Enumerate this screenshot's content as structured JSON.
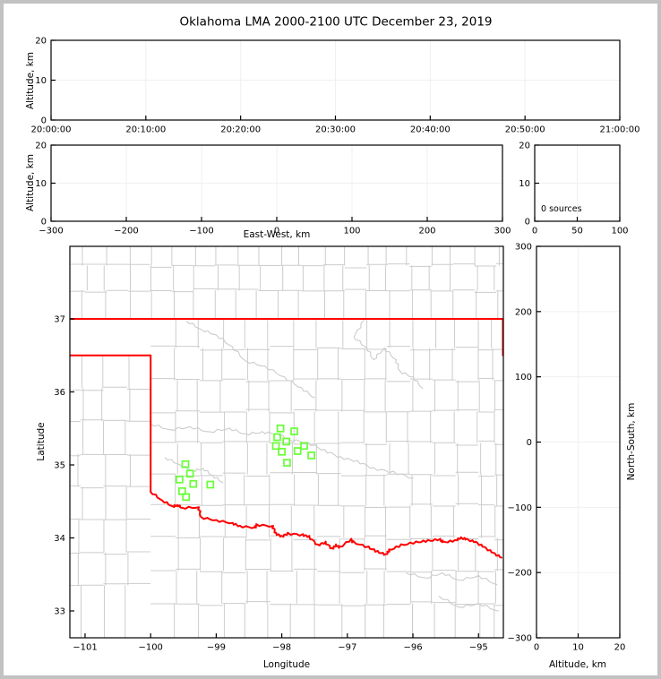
{
  "figure": {
    "title": "Oklahoma LMA 2000-2100 UTC December 23, 2019",
    "background": "#ffffff",
    "border_color": "#c2c2c2"
  },
  "colors": {
    "axis_frame": "#000000",
    "grid": "#f0f0f0",
    "county_line": "#cccccc",
    "gray_river": "#cccccc",
    "state_border_red": "#ff0000",
    "station_green": "#66ff33",
    "tick_text": "#000000"
  },
  "chart_data": [
    {
      "id": "time-height",
      "type": "scatter",
      "ylabel": "Altitude, km",
      "xlabel": "",
      "xlim": [
        0,
        3600
      ],
      "ylim": [
        0,
        20
      ],
      "x_ticks": {
        "values": [
          0,
          600,
          1200,
          1800,
          2400,
          3000,
          3600
        ],
        "labels": [
          "20:00:00",
          "20:10:00",
          "20:20:00",
          "20:30:00",
          "20:40:00",
          "20:50:00",
          "21:00:00"
        ]
      },
      "y_ticks": {
        "values": [
          0,
          10,
          20
        ],
        "labels": [
          "0",
          "10",
          "20"
        ]
      },
      "points": []
    },
    {
      "id": "ew-height",
      "type": "scatter",
      "ylabel": "Altitude, km",
      "xlabel": "East-West, km",
      "xlim": [
        -300,
        300
      ],
      "ylim": [
        0,
        20
      ],
      "x_ticks": {
        "values": [
          -300,
          -200,
          -100,
          0,
          100,
          200,
          300
        ],
        "labels": [
          "−300",
          "−200",
          "−100",
          "0",
          "100",
          "200",
          "300"
        ]
      },
      "y_ticks": {
        "values": [
          0,
          10,
          20
        ],
        "labels": [
          "0",
          "10",
          "20"
        ]
      },
      "points": []
    },
    {
      "id": "altitude-histogram",
      "type": "line",
      "ylabel": "",
      "xlabel": "",
      "xlim": [
        0,
        100
      ],
      "ylim": [
        0,
        20
      ],
      "x_ticks": {
        "values": [
          0,
          50,
          100
        ],
        "labels": [
          "0",
          "50",
          "100"
        ]
      },
      "y_ticks": {
        "values": [
          0,
          10,
          20
        ],
        "labels": [
          "0",
          "10",
          "20"
        ]
      },
      "annotation": "0 sources",
      "points": []
    },
    {
      "id": "plan-view-map",
      "type": "scatter",
      "ylabel": "Latitude",
      "xlabel": "Longitude",
      "xlim": [
        -101.232,
        -94.621
      ],
      "ylim": [
        32.632,
        37.994
      ],
      "x_ticks": {
        "values": [
          -101,
          -100,
          -99,
          -98,
          -97,
          -96,
          -95
        ],
        "labels": [
          "−101",
          "−100",
          "−99",
          "−98",
          "−97",
          "−96",
          "−95"
        ]
      },
      "y_ticks": {
        "values": [
          33,
          34,
          35,
          36,
          37
        ],
        "labels": [
          "33",
          "34",
          "35",
          "36",
          "37"
        ]
      },
      "stations": [
        [
          -99.47,
          35.01
        ],
        [
          -99.4,
          34.88
        ],
        [
          -99.56,
          34.8
        ],
        [
          -99.35,
          34.74
        ],
        [
          -99.09,
          34.73
        ],
        [
          -99.52,
          34.64
        ],
        [
          -99.46,
          34.56
        ],
        [
          -98.02,
          35.5
        ],
        [
          -97.81,
          35.46
        ],
        [
          -98.07,
          35.38
        ],
        [
          -97.93,
          35.32
        ],
        [
          -98.09,
          35.26
        ],
        [
          -97.66,
          35.26
        ],
        [
          -98.0,
          35.18
        ],
        [
          -97.76,
          35.19
        ],
        [
          -97.55,
          35.13
        ],
        [
          -97.92,
          35.03
        ]
      ]
    },
    {
      "id": "ns-height",
      "type": "scatter",
      "ylabel": "North-South, km",
      "xlabel": "Altitude, km",
      "xlim": [
        0,
        20
      ],
      "ylim": [
        -300,
        300
      ],
      "x_ticks": {
        "values": [
          0,
          10,
          20
        ],
        "labels": [
          "0",
          "10",
          "20"
        ]
      },
      "y_ticks": {
        "values": [
          -300,
          -200,
          -100,
          0,
          100,
          200,
          300
        ],
        "labels": [
          "−300",
          "−200",
          "−100",
          "0",
          "100",
          "200",
          "300"
        ]
      },
      "points": []
    }
  ],
  "map": {
    "state_border_paths": [
      [
        [
          -101.232,
          37.0
        ],
        [
          -94.621,
          37.0
        ]
      ],
      [
        [
          -101.232,
          36.5
        ],
        [
          -100.0,
          36.5
        ]
      ],
      [
        [
          -100.0,
          36.5
        ],
        [
          -100.0,
          34.63
        ]
      ],
      [
        [
          -94.628,
          37.0
        ],
        [
          -94.628,
          36.5
        ]
      ],
      [
        [
          -100.0,
          34.63
        ],
        [
          -99.82,
          34.51
        ],
        [
          -99.66,
          34.43
        ],
        [
          -99.59,
          34.45
        ],
        [
          -99.52,
          34.41
        ],
        [
          -99.27,
          34.42
        ],
        [
          -99.23,
          34.28
        ],
        [
          -99.0,
          34.24
        ],
        [
          -98.75,
          34.2
        ],
        [
          -98.64,
          34.16
        ],
        [
          -98.41,
          34.14
        ],
        [
          -98.39,
          34.18
        ],
        [
          -98.14,
          34.16
        ],
        [
          -98.09,
          34.06
        ],
        [
          -98.0,
          34.02
        ],
        [
          -97.91,
          34.06
        ],
        [
          -97.68,
          34.04
        ],
        [
          -97.59,
          34.02
        ],
        [
          -97.45,
          33.9
        ],
        [
          -97.34,
          33.94
        ],
        [
          -97.23,
          33.85
        ],
        [
          -97.18,
          33.9
        ],
        [
          -97.11,
          33.87
        ],
        [
          -96.95,
          33.98
        ],
        [
          -96.91,
          33.94
        ],
        [
          -96.68,
          33.87
        ],
        [
          -96.54,
          33.81
        ],
        [
          -96.41,
          33.77
        ],
        [
          -96.36,
          33.83
        ],
        [
          -96.18,
          33.9
        ],
        [
          -95.95,
          33.94
        ],
        [
          -95.77,
          33.96
        ],
        [
          -95.59,
          33.98
        ],
        [
          -95.54,
          33.94
        ],
        [
          -95.36,
          33.96
        ],
        [
          -95.27,
          34.0
        ],
        [
          -95.18,
          33.98
        ],
        [
          -95.04,
          33.94
        ],
        [
          -94.91,
          33.87
        ],
        [
          -94.77,
          33.79
        ],
        [
          -94.65,
          33.73
        ]
      ]
    ],
    "gray_rivers": [
      [
        [
          -99.45,
          36.97
        ],
        [
          -99.22,
          36.85
        ],
        [
          -99.0,
          36.78
        ],
        [
          -98.76,
          36.62
        ],
        [
          -98.55,
          36.42
        ],
        [
          -98.26,
          36.35
        ],
        [
          -97.96,
          36.2
        ],
        [
          -97.7,
          36.05
        ],
        [
          -97.5,
          35.92
        ]
      ],
      [
        [
          -96.75,
          36.98
        ],
        [
          -96.9,
          36.75
        ],
        [
          -96.7,
          36.6
        ],
        [
          -96.6,
          36.44
        ],
        [
          -96.44,
          36.6
        ],
        [
          -96.26,
          36.44
        ],
        [
          -96.2,
          36.28
        ],
        [
          -96.0,
          36.2
        ],
        [
          -95.85,
          36.05
        ]
      ],
      [
        [
          -100.0,
          35.56
        ],
        [
          -99.7,
          35.48
        ],
        [
          -99.4,
          35.52
        ],
        [
          -99.1,
          35.45
        ],
        [
          -98.8,
          35.5
        ],
        [
          -98.55,
          35.42
        ],
        [
          -98.3,
          35.45
        ],
        [
          -98.05,
          35.42
        ],
        [
          -97.9,
          35.35
        ],
        [
          -97.6,
          35.3
        ],
        [
          -97.35,
          35.2
        ],
        [
          -97.1,
          35.1
        ],
        [
          -96.85,
          35.05
        ],
        [
          -96.6,
          34.95
        ],
        [
          -96.3,
          34.9
        ],
        [
          -96.0,
          34.82
        ]
      ],
      [
        [
          -99.78,
          35.1
        ],
        [
          -99.55,
          35.0
        ],
        [
          -99.35,
          34.92
        ],
        [
          -99.2,
          34.95
        ],
        [
          -99.05,
          34.85
        ],
        [
          -98.9,
          34.76
        ]
      ],
      [
        [
          -96.1,
          33.52
        ],
        [
          -95.8,
          33.45
        ],
        [
          -95.55,
          33.52
        ],
        [
          -95.3,
          33.42
        ],
        [
          -95.0,
          33.48
        ],
        [
          -94.72,
          33.36
        ]
      ],
      [
        [
          -95.6,
          33.2
        ],
        [
          -95.3,
          33.05
        ],
        [
          -95.0,
          33.1
        ],
        [
          -94.7,
          33.0
        ]
      ]
    ],
    "county_grid": {
      "regions": [
        {
          "name": "kansas",
          "lon_range": [
            -101.232,
            -94.621
          ],
          "row_lats": [
            37.0,
            37.39,
            37.73,
            37.994
          ],
          "border_lats": [
            37.0,
            37.994
          ],
          "v_lons": [
            -101.0,
            -100.67,
            -100.34,
            -100.01,
            -99.68,
            -99.35,
            -99.02,
            -98.69,
            -98.36,
            -98.03,
            -97.7,
            -97.37,
            -97.04,
            -96.71,
            -96.38,
            -96.05,
            -95.72,
            -95.39,
            -95.06,
            -94.73
          ]
        },
        {
          "name": "oklahoma-texas-east",
          "lon_range": [
            -100.0,
            -94.621
          ],
          "row_lats": [
            32.632,
            33.1,
            33.55,
            34.0,
            34.44,
            34.87,
            35.3,
            35.73,
            36.16,
            36.6,
            37.0
          ],
          "border_lats": [
            32.632,
            37.0
          ],
          "v_lons": [
            -99.62,
            -99.25,
            -98.9,
            -98.55,
            -98.18,
            -97.82,
            -97.46,
            -97.1,
            -96.74,
            -96.4,
            -96.04,
            -95.7,
            -95.35,
            -95.0,
            -94.76
          ]
        },
        {
          "name": "texas-panhandle",
          "lon_range": [
            -101.232,
            -100.0
          ],
          "row_lats": [
            32.632,
            33.35,
            33.8,
            34.25,
            34.7,
            35.15,
            35.6,
            36.05,
            36.5
          ],
          "border_lats": [
            32.632,
            36.5
          ],
          "v_lons": [
            -101.07,
            -100.72,
            -100.36
          ]
        }
      ]
    }
  }
}
